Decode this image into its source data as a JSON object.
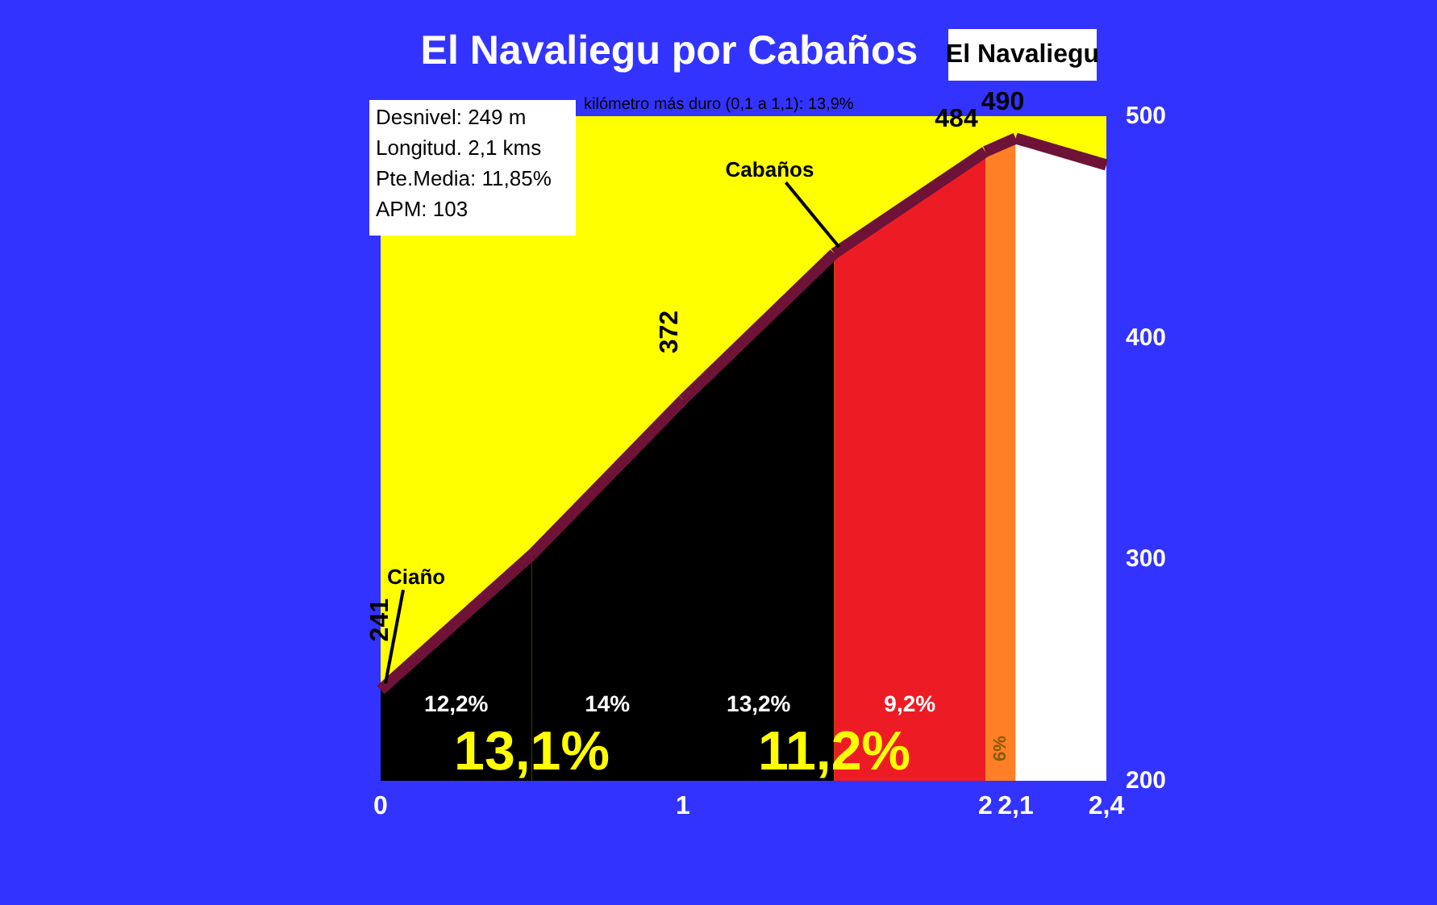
{
  "chart_data": {
    "type": "area",
    "title": "El Navaliegu por Cabaños",
    "xlim": [
      0,
      2.4
    ],
    "xticks": [
      0,
      1,
      2,
      {
        "value": 2.1,
        "label": "2,1"
      },
      {
        "value": 2.4,
        "label": "2,4"
      }
    ],
    "ylim": [
      200,
      500
    ],
    "yticks": [
      200,
      300,
      400,
      500
    ],
    "grid": false,
    "series": [
      {
        "color": "#000000",
        "x": [
          0,
          0.5
        ],
        "values": [
          241,
          302
        ]
      },
      {
        "color": "#000000",
        "x": [
          0.5,
          1
        ],
        "values": [
          302,
          372
        ]
      },
      {
        "color": "#000000",
        "x": [
          1,
          1.5
        ],
        "values": [
          372,
          438
        ]
      },
      {
        "color": "#ed1c24",
        "x": [
          1.5,
          2
        ],
        "values": [
          438,
          484
        ]
      },
      {
        "color": "#ff7f27",
        "x": [
          2,
          2.1
        ],
        "values": [
          484,
          490
        ]
      },
      {
        "color": "#ffffff",
        "x": [
          2.1,
          2.4
        ],
        "values": [
          490,
          478
        ]
      }
    ],
    "annotations": [
      "Desnivel: 249 m",
      "Longitud. 2,1 kms",
      "Pte.Media: 11,85%",
      "APM: 103",
      "kilómetro más duro (0,1 a 1,1): 13,9%",
      "El Navaliegu",
      "12,2%",
      "14%",
      "13,2%",
      "9,2%",
      "13,1%",
      "11,2%",
      "6%",
      {
        "text": "Ciaño",
        "x": 0,
        "y": 241
      },
      {
        "text": "Cabaños",
        "x": 1.5,
        "y": 438
      },
      {
        "text": "241",
        "x": 0,
        "y": 241
      },
      {
        "text": "372",
        "x": 1,
        "y": 372
      },
      {
        "text": "484",
        "x": 2,
        "y": 484
      },
      {
        "text": "490",
        "x": 2.1,
        "y": 490
      }
    ]
  }
}
